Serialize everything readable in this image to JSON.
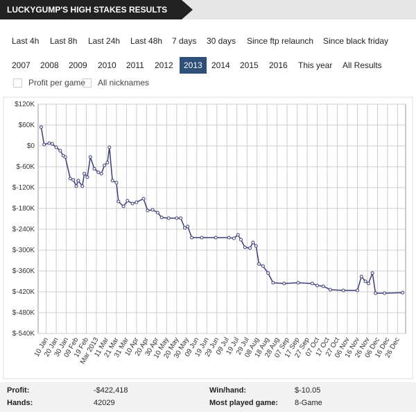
{
  "header": {
    "title": "LUCKYGUMP'S HIGH STAKES RESULTS"
  },
  "filters": {
    "periods": [
      "Last 4h",
      "Last 8h",
      "Last 24h",
      "Last 48h",
      "7 days",
      "30 days",
      "Since ftp relaunch",
      "Since black friday"
    ],
    "years": [
      "2007",
      "2008",
      "2009",
      "2010",
      "2011",
      "2012",
      "2013",
      "2014",
      "2015",
      "2016",
      "This year",
      "All Results"
    ],
    "selected": "2013",
    "options": [
      "Profit per game",
      "All nicknames"
    ]
  },
  "chart_data": {
    "type": "line",
    "color": "#3b3b78",
    "grid": true,
    "x": [
      5,
      8,
      13,
      16,
      20,
      24,
      27,
      29,
      34,
      37,
      40,
      42,
      46,
      48,
      51,
      54,
      58,
      62,
      65,
      68,
      71,
      73,
      76,
      80,
      82,
      87,
      91,
      96,
      100,
      107,
      111,
      116,
      121,
      125,
      132,
      140,
      144,
      148,
      151,
      155,
      165,
      179,
      192,
      197,
      201,
      204,
      208,
      213,
      216,
      219,
      222,
      226,
      231,
      236,
      247,
      261,
      275,
      280,
      286,
      293,
      306,
      320,
      324,
      328,
      331,
      335,
      338,
      347,
      365
    ],
    "values": [
      54000,
      4000,
      8000,
      6000,
      -4000,
      -14000,
      -28000,
      -32000,
      -94000,
      -98000,
      -116000,
      -100000,
      -116000,
      -80000,
      -90000,
      -32000,
      -66000,
      -76000,
      -80000,
      -56000,
      -48000,
      -4000,
      -100000,
      -106000,
      -160000,
      -174000,
      -158000,
      -166000,
      -162000,
      -152000,
      -186000,
      -184000,
      -192000,
      -206000,
      -208000,
      -208000,
      -208000,
      -236000,
      -232000,
      -264000,
      -264000,
      -264000,
      -264000,
      -266000,
      -256000,
      -270000,
      -292000,
      -294000,
      -278000,
      -288000,
      -340000,
      -346000,
      -366000,
      -394000,
      -396000,
      -394000,
      -396000,
      -402000,
      -404000,
      -414000,
      -416000,
      -416000,
      -376000,
      -390000,
      -396000,
      -366000,
      -424000,
      -424000,
      -422418
    ],
    "xlim": [
      2,
      368
    ],
    "xticks": [
      {
        "value": 10,
        "label": "10 Jan"
      },
      {
        "value": 20,
        "label": "20 Jan"
      },
      {
        "value": 30,
        "label": "30 Jan"
      },
      {
        "value": 40,
        "label": "09 Feb"
      },
      {
        "value": 50,
        "label": "19 Feb"
      },
      {
        "value": 60,
        "label": "Mar 2013"
      },
      {
        "value": 70,
        "label": "11 Mar"
      },
      {
        "value": 80,
        "label": "21 Mar"
      },
      {
        "value": 90,
        "label": "31 Mar"
      },
      {
        "value": 100,
        "label": "10 Apr"
      },
      {
        "value": 110,
        "label": "20 Apr"
      },
      {
        "value": 120,
        "label": "30 Apr"
      },
      {
        "value": 130,
        "label": "10 May"
      },
      {
        "value": 140,
        "label": "20 May"
      },
      {
        "value": 150,
        "label": "30 May"
      },
      {
        "value": 160,
        "label": "09 Jun"
      },
      {
        "value": 170,
        "label": "19 Jun"
      },
      {
        "value": 180,
        "label": "29 Jun"
      },
      {
        "value": 190,
        "label": "09 Jul"
      },
      {
        "value": 200,
        "label": "19 Jul"
      },
      {
        "value": 210,
        "label": "29 Jul"
      },
      {
        "value": 220,
        "label": "08 Aug"
      },
      {
        "value": 230,
        "label": "18 Aug"
      },
      {
        "value": 240,
        "label": "28 Aug"
      },
      {
        "value": 250,
        "label": "07 Sep"
      },
      {
        "value": 260,
        "label": "17 Sep"
      },
      {
        "value": 270,
        "label": "27 Sep"
      },
      {
        "value": 280,
        "label": "07 Oct"
      },
      {
        "value": 290,
        "label": "17 Oct"
      },
      {
        "value": 300,
        "label": "27 Oct"
      },
      {
        "value": 310,
        "label": "06 Nov"
      },
      {
        "value": 320,
        "label": "16 Nov"
      },
      {
        "value": 330,
        "label": "26 Nov"
      },
      {
        "value": 340,
        "label": "06 Dec"
      },
      {
        "value": 350,
        "label": "16 Dec"
      },
      {
        "value": 360,
        "label": "26 Dec"
      }
    ],
    "ylim": [
      -540000,
      120000
    ],
    "yticks": [
      {
        "value": 120000,
        "label": "$120K"
      },
      {
        "value": 60000,
        "label": "$60K"
      },
      {
        "value": 0,
        "label": "$0"
      },
      {
        "value": -60000,
        "label": "$-60K"
      },
      {
        "value": -120000,
        "label": "$-120K"
      },
      {
        "value": -180000,
        "label": "$-180K"
      },
      {
        "value": -240000,
        "label": "$-240K"
      },
      {
        "value": -300000,
        "label": "$-300K"
      },
      {
        "value": -360000,
        "label": "$-360K"
      },
      {
        "value": -420000,
        "label": "$-420K"
      },
      {
        "value": -480000,
        "label": "$-480K"
      },
      {
        "value": -540000,
        "label": "$-540K"
      }
    ]
  },
  "stats": {
    "rows": [
      [
        "Profit:",
        "-$422,418",
        "Win/hand:",
        "$-10.05"
      ],
      [
        "Hands:",
        "42029",
        "Most played game:",
        "8-Game"
      ]
    ]
  }
}
